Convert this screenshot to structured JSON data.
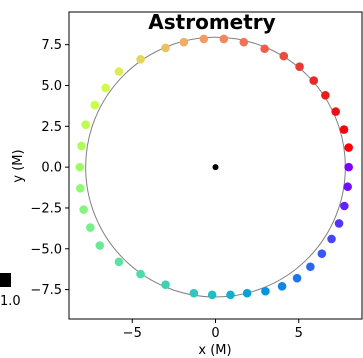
{
  "chart_data": {
    "type": "scatter",
    "title": "Astrometry",
    "xlabel": "x (M)",
    "ylabel": "y (M)",
    "xlim": [
      -8.8,
      8.8
    ],
    "ylim": [
      -9.3,
      9.5
    ],
    "xticks": [
      -5,
      0,
      5
    ],
    "xtick_labels": [
      "−5",
      "0",
      "5"
    ],
    "yticks": [
      -7.5,
      -5.0,
      -2.5,
      0.0,
      2.5,
      5.0,
      7.5
    ],
    "ytick_labels": [
      "−7.5",
      "−5.0",
      "−2.5",
      "0.0",
      "2.5",
      "5.0",
      "7.5"
    ],
    "grid": false,
    "orbit_radius": 7.8,
    "center_marker": {
      "x": 0,
      "y": 0,
      "color": "#000000"
    },
    "colorbar_tick_label": "1.0",
    "points": [
      {
        "x": 8.0,
        "y": 0.0,
        "color": "#8000ff"
      },
      {
        "x": 7.94,
        "y": -1.2,
        "color": "#7011fe"
      },
      {
        "x": 7.74,
        "y": -2.38,
        "color": "#6322fd"
      },
      {
        "x": 7.42,
        "y": -3.45,
        "color": "#5534fb"
      },
      {
        "x": 6.97,
        "y": -4.4,
        "color": "#4745f8"
      },
      {
        "x": 6.39,
        "y": -5.3,
        "color": "#3a56f4"
      },
      {
        "x": 5.7,
        "y": -6.1,
        "color": "#2c66ef"
      },
      {
        "x": 4.9,
        "y": -6.8,
        "color": "#1e76ea"
      },
      {
        "x": 4.0,
        "y": -7.3,
        "color": "#1085e4"
      },
      {
        "x": 3.0,
        "y": -7.6,
        "color": "#0294de"
      },
      {
        "x": 1.9,
        "y": -7.72,
        "color": "#08a2d7"
      },
      {
        "x": 0.9,
        "y": -7.82,
        "color": "#14afcf"
      },
      {
        "x": -0.2,
        "y": -7.82,
        "color": "#22bcc7"
      },
      {
        "x": -1.3,
        "y": -7.72,
        "color": "#30c7be"
      },
      {
        "x": -3.0,
        "y": -7.2,
        "color": "#3ed1b4"
      },
      {
        "x": -4.5,
        "y": -6.55,
        "color": "#4cdbaa"
      },
      {
        "x": -5.8,
        "y": -5.8,
        "color": "#5ae3a0"
      },
      {
        "x": -6.95,
        "y": -4.8,
        "color": "#68ea95"
      },
      {
        "x": -7.52,
        "y": -3.7,
        "color": "#76f08a"
      },
      {
        "x": -7.92,
        "y": -2.6,
        "color": "#84f47f"
      },
      {
        "x": -8.12,
        "y": -1.3,
        "color": "#92f873"
      },
      {
        "x": -8.15,
        "y": 0.0,
        "color": "#a0fa68"
      },
      {
        "x": -8.05,
        "y": 1.3,
        "color": "#aefc5c"
      },
      {
        "x": -7.8,
        "y": 2.6,
        "color": "#bcfd50"
      },
      {
        "x": -7.25,
        "y": 3.8,
        "color": "#cafe45"
      },
      {
        "x": -6.6,
        "y": 4.85,
        "color": "#d2fa48"
      },
      {
        "x": -5.8,
        "y": 5.85,
        "color": "#dcec52"
      },
      {
        "x": -4.5,
        "y": 6.6,
        "color": "#e4d65a"
      },
      {
        "x": -3.0,
        "y": 7.3,
        "color": "#ebc160"
      },
      {
        "x": -1.9,
        "y": 7.65,
        "color": "#f0ad63"
      },
      {
        "x": -0.7,
        "y": 7.85,
        "color": "#f29b62"
      },
      {
        "x": 0.5,
        "y": 7.85,
        "color": "#f2875e"
      },
      {
        "x": 1.7,
        "y": 7.65,
        "color": "#f07356"
      },
      {
        "x": 2.95,
        "y": 7.25,
        "color": "#ed5f4c"
      },
      {
        "x": 4.1,
        "y": 6.8,
        "color": "#ea4c40"
      },
      {
        "x": 5.05,
        "y": 6.15,
        "color": "#e73a34"
      },
      {
        "x": 5.9,
        "y": 5.3,
        "color": "#e52a27"
      },
      {
        "x": 6.6,
        "y": 4.4,
        "color": "#e81d1e"
      },
      {
        "x": 7.22,
        "y": 3.4,
        "color": "#ee0f14"
      },
      {
        "x": 7.72,
        "y": 2.3,
        "color": "#f5060a"
      },
      {
        "x": 8.0,
        "y": 1.2,
        "color": "#ff0000"
      }
    ]
  }
}
